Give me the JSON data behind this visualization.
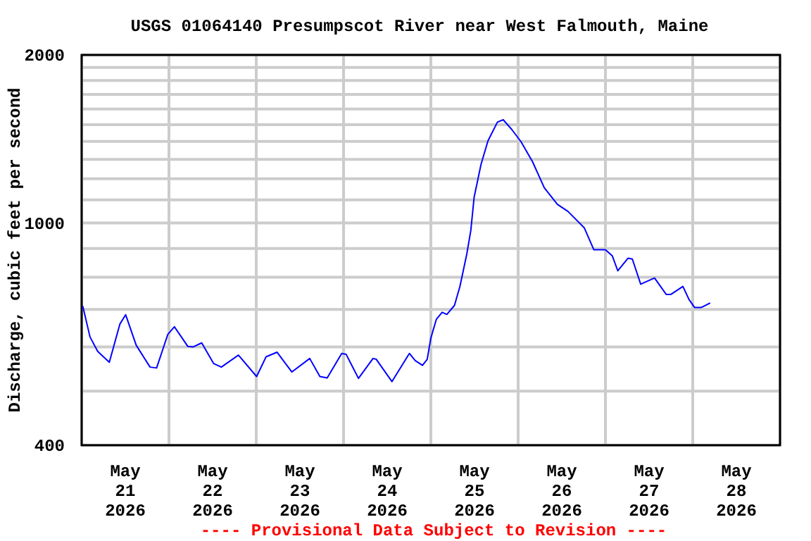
{
  "chart_data": {
    "type": "line",
    "title": "USGS 01064140 Presumpscot River near West Falmouth, Maine",
    "ylabel": "Discharge, cubic feet per second",
    "annotations": [
      "---- Provisional Data Subject to Revision ----"
    ],
    "x": [
      "2026-05-21T00:18",
      "2026-05-21T02:18",
      "2026-05-21T04:24",
      "2026-05-21T07:36",
      "2026-05-21T10:30",
      "2026-05-21T12:06",
      "2026-05-21T15:00",
      "2026-05-21T18:48",
      "2026-05-21T20:36",
      "2026-05-21T23:42",
      "2026-05-22T01:30",
      "2026-05-22T05:12",
      "2026-05-22T06:42",
      "2026-05-22T09:00",
      "2026-05-22T12:18",
      "2026-05-22T14:24",
      "2026-05-22T19:06",
      "2026-05-23T00:06",
      "2026-05-23T02:42",
      "2026-05-23T05:42",
      "2026-05-23T09:48",
      "2026-05-23T14:42",
      "2026-05-23T17:30",
      "2026-05-23T19:30",
      "2026-05-23T23:30",
      "2026-05-24T00:42",
      "2026-05-24T04:06",
      "2026-05-24T08:06",
      "2026-05-24T09:00",
      "2026-05-24T13:18",
      "2026-05-24T18:06",
      "2026-05-24T19:42",
      "2026-05-24T21:42",
      "2026-05-24T23:00",
      "2026-05-25T00:00",
      "2026-05-25T01:30",
      "2026-05-25T03:06",
      "2026-05-25T04:24",
      "2026-05-25T06:30",
      "2026-05-25T08:00",
      "2026-05-25T09:54",
      "2026-05-25T11:00",
      "2026-05-25T11:54",
      "2026-05-25T13:48",
      "2026-05-25T15:42",
      "2026-05-25T18:18",
      "2026-05-25T19:54",
      "2026-05-25T22:12",
      "2026-05-26T00:48",
      "2026-05-26T04:00",
      "2026-05-26T07:12",
      "2026-05-26T10:48",
      "2026-05-26T13:42",
      "2026-05-26T18:12",
      "2026-05-26T20:48",
      "2026-05-27T00:00",
      "2026-05-27T01:54",
      "2026-05-27T03:24",
      "2026-05-27T06:12",
      "2026-05-27T07:24",
      "2026-05-27T09:42",
      "2026-05-27T13:30",
      "2026-05-27T16:42",
      "2026-05-27T18:00",
      "2026-05-27T21:18",
      "2026-05-27T23:00",
      "2026-05-28T00:30",
      "2026-05-28T02:24",
      "2026-05-28T04:48"
    ],
    "series": [
      {
        "color": "#0000ff",
        "values": [
          710,
          625,
          589,
          563,
          659,
          685,
          604,
          552,
          550,
          632,
          652,
          601,
          600,
          610,
          560,
          552,
          580,
          531,
          576,
          587,
          541,
          572,
          531,
          528,
          584,
          582,
          527,
          572,
          570,
          520,
          584,
          567,
          556,
          570,
          622,
          672,
          692,
          686,
          712,
          770,
          881,
          971,
          1112,
          1274,
          1403,
          1516,
          1531,
          1472,
          1398,
          1286,
          1156,
          1080,
          1049,
          980,
          896,
          896,
          873,
          821,
          865,
          862,
          777,
          797,
          745,
          745,
          770,
          729,
          706,
          706,
          719
        ]
      }
    ],
    "log": "y",
    "grid": true,
    "xlim": [
      "2026-05-21",
      "2026-05-29"
    ],
    "xticks": [
      {
        "value": "2026-05-21",
        "label": null
      },
      {
        "value": "2026-05-21T12:00",
        "label": "May\n21\n2026"
      },
      {
        "value": "2026-05-22",
        "label": null
      },
      {
        "value": "2026-05-22T12:00",
        "label": "May\n22\n2026"
      },
      {
        "value": "2026-05-23",
        "label": null
      },
      {
        "value": "2026-05-23T12:00",
        "label": "May\n23\n2026"
      },
      {
        "value": "2026-05-24",
        "label": null
      },
      {
        "value": "2026-05-24T12:00",
        "label": "May\n24\n2026"
      },
      {
        "value": "2026-05-25",
        "label": null
      },
      {
        "value": "2026-05-25T12:00",
        "label": "May\n25\n2026"
      },
      {
        "value": "2026-05-26",
        "label": null
      },
      {
        "value": "2026-05-26T12:00",
        "label": "May\n26\n2026"
      },
      {
        "value": "2026-05-27",
        "label": null
      },
      {
        "value": "2026-05-27T12:00",
        "label": "May\n27\n2026"
      },
      {
        "value": "2026-05-28",
        "label": null
      },
      {
        "value": "2026-05-28T12:00",
        "label": "May\n28\n2026"
      },
      {
        "value": "2026-05-29",
        "label": null
      }
    ],
    "ylim": [
      400,
      2000
    ],
    "yticks": [
      400,
      {
        "value": 500,
        "label": null
      },
      {
        "value": 600,
        "label": null
      },
      {
        "value": 700,
        "label": null
      },
      {
        "value": 800,
        "label": null
      },
      {
        "value": 900,
        "label": null
      },
      1000,
      {
        "value": 1100,
        "label": null
      },
      {
        "value": 1200,
        "label": null
      },
      {
        "value": 1300,
        "label": null
      },
      {
        "value": 1400,
        "label": null
      },
      {
        "value": 1500,
        "label": null
      },
      {
        "value": 1600,
        "label": null
      },
      {
        "value": 1700,
        "label": null
      },
      {
        "value": 1800,
        "label": null
      },
      {
        "value": 1900,
        "label": null
      },
      2000
    ]
  }
}
